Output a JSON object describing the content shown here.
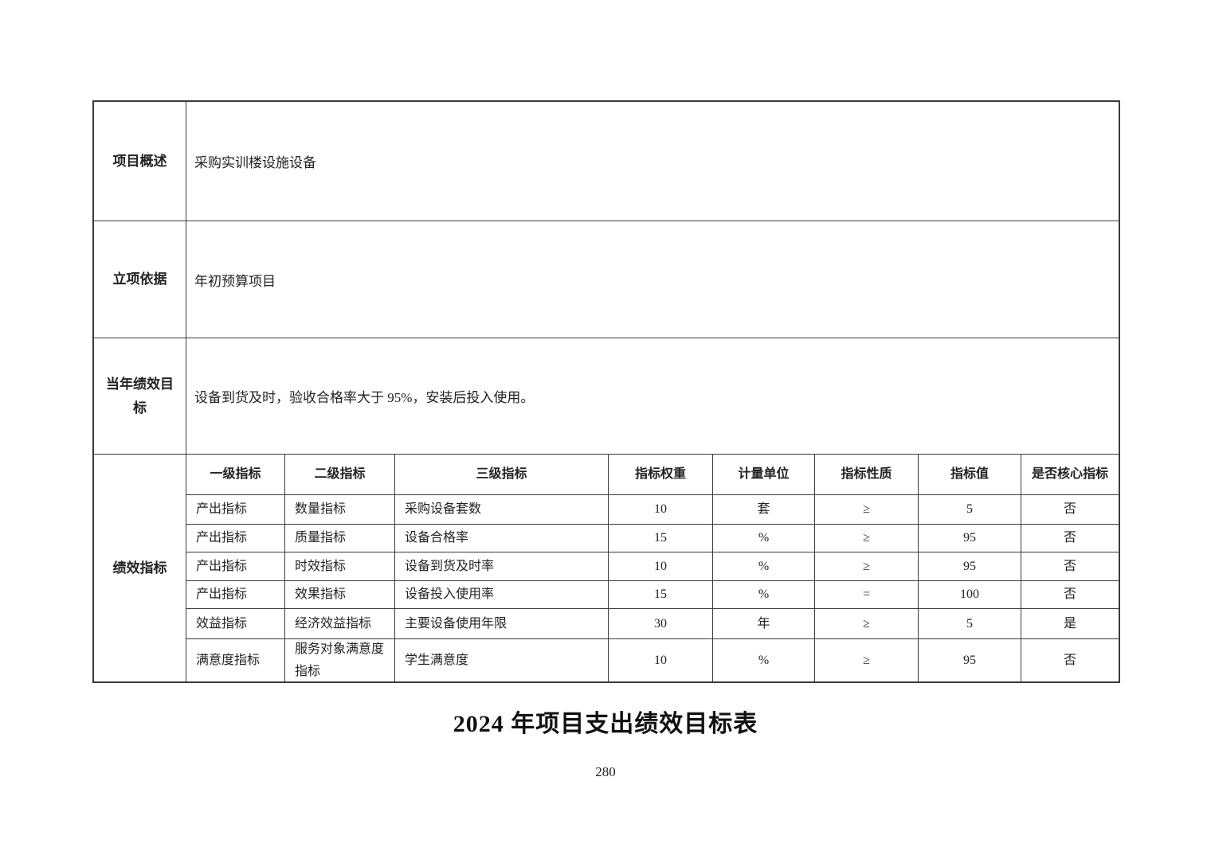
{
  "table": {
    "info_rows": [
      {
        "label": "项目概述",
        "content": "采购实训楼设施设备"
      },
      {
        "label": "立项依据",
        "content": "年初预算项目"
      },
      {
        "label": "当年绩效目标",
        "content": "设备到货及时，验收合格率大于 95%，安装后投入使用。"
      }
    ],
    "indicator_section": {
      "label": "绩效指标",
      "headers": [
        "一级指标",
        "二级指标",
        "三级指标",
        "指标权重",
        "计量单位",
        "指标性质",
        "指标值",
        "是否核心指标"
      ],
      "rows": [
        [
          "产出指标",
          "数量指标",
          "采购设备套数",
          "10",
          "套",
          "≥",
          "5",
          "否"
        ],
        [
          "产出指标",
          "质量指标",
          "设备合格率",
          "15",
          "%",
          "≥",
          "95",
          "否"
        ],
        [
          "产出指标",
          "时效指标",
          "设备到货及时率",
          "10",
          "%",
          "≥",
          "95",
          "否"
        ],
        [
          "产出指标",
          "效果指标",
          "设备投入使用率",
          "15",
          "%",
          "=",
          "100",
          "否"
        ],
        [
          "效益指标",
          "经济效益指标",
          "主要设备使用年限",
          "30",
          "年",
          "≥",
          "5",
          "是"
        ],
        [
          "满意度指标",
          "服务对象满意度指标",
          "学生满意度",
          "10",
          "%",
          "≥",
          "95",
          "否"
        ]
      ]
    }
  },
  "footer": {
    "title": "2024 年项目支出绩效目标表",
    "page_number": "280"
  }
}
